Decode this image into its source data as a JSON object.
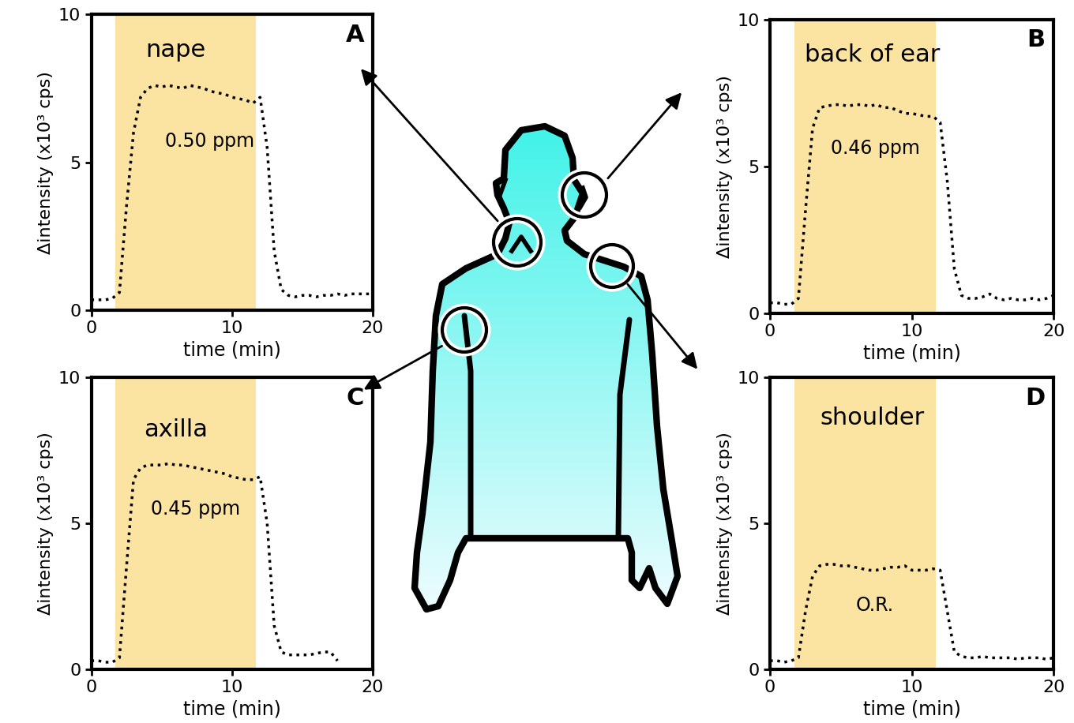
{
  "chart_data": [
    {
      "type": "line",
      "title": "nape",
      "panel": "A",
      "annotation": "0.50 ppm",
      "x_label": "time (min)",
      "y_label": "Δintensity (x10³ cps)",
      "xlim": [
        0,
        20
      ],
      "xticks": [
        0,
        10,
        20
      ],
      "ylim": [
        0,
        10
      ],
      "yticks": [
        0,
        5,
        10
      ],
      "exposure": [
        1.7,
        11.7
      ],
      "color": "#000000",
      "line_style": "dotted",
      "x": [
        0,
        0.5,
        1,
        1.5,
        2,
        2.5,
        3,
        3.5,
        4,
        4.5,
        5,
        5.5,
        6,
        6.5,
        7,
        7.5,
        8,
        8.5,
        9,
        9.5,
        10,
        10.5,
        11,
        11.5,
        12,
        12.5,
        13,
        13.5,
        14,
        14.5,
        15,
        15.5,
        16,
        16.5,
        17,
        17.5,
        18,
        18.5,
        19,
        19.5,
        20
      ],
      "values": [
        0.35,
        0.35,
        0.35,
        0.4,
        0.6,
        3.5,
        6.0,
        7.2,
        7.5,
        7.6,
        7.55,
        7.6,
        7.55,
        7.5,
        7.6,
        7.55,
        7.5,
        7.4,
        7.35,
        7.3,
        7.2,
        7.15,
        7.1,
        7.0,
        7.2,
        5.5,
        2.0,
        0.7,
        0.5,
        0.45,
        0.5,
        0.5,
        0.45,
        0.5,
        0.5,
        0.55,
        0.5,
        0.55,
        0.55,
        0.55,
        0.55
      ]
    },
    {
      "type": "line",
      "title": "back of ear",
      "panel": "B",
      "annotation": "0.46 ppm",
      "x_label": "time (min)",
      "y_label": "Δintensity (x10³ cps)",
      "xlim": [
        0,
        20
      ],
      "xticks": [
        0,
        10,
        20
      ],
      "ylim": [
        0,
        10
      ],
      "yticks": [
        0,
        5,
        10
      ],
      "exposure": [
        1.7,
        11.7
      ],
      "color": "#000000",
      "line_style": "dotted",
      "x": [
        0,
        0.5,
        1,
        1.5,
        2,
        2.5,
        3,
        3.5,
        4,
        4.5,
        5,
        5.5,
        6,
        6.5,
        7,
        7.5,
        8,
        8.5,
        9,
        9.5,
        10,
        10.5,
        11,
        11.5,
        12,
        12.5,
        13,
        13.5,
        14,
        14.5,
        15,
        15.5,
        16,
        16.5,
        17,
        17.5,
        18,
        18.5,
        19,
        19.5,
        20
      ],
      "values": [
        0.35,
        0.35,
        0.3,
        0.3,
        0.5,
        3.5,
        6.3,
        7.0,
        7.05,
        7.1,
        7.1,
        7.05,
        7.1,
        7.1,
        7.05,
        7.1,
        7.0,
        7.0,
        6.9,
        6.8,
        6.8,
        6.75,
        6.7,
        6.7,
        6.5,
        4.5,
        1.5,
        0.6,
        0.5,
        0.5,
        0.55,
        0.65,
        0.5,
        0.45,
        0.5,
        0.45,
        0.45,
        0.5,
        0.45,
        0.5,
        0.6
      ]
    },
    {
      "type": "line",
      "title": "axilla",
      "panel": "C",
      "annotation": "0.45 ppm",
      "x_label": "time (min)",
      "y_label": "Δintensity (x10³ cps)",
      "xlim": [
        0,
        20
      ],
      "xticks": [
        0,
        10,
        20
      ],
      "ylim": [
        0,
        10
      ],
      "yticks": [
        0,
        5,
        10
      ],
      "exposure": [
        1.7,
        11.7
      ],
      "color": "#000000",
      "line_style": "dotted",
      "x": [
        0,
        0.5,
        1,
        1.5,
        2,
        2.5,
        3,
        3.5,
        4,
        4.5,
        5,
        5.5,
        6,
        6.5,
        7,
        7.5,
        8,
        8.5,
        9,
        9.5,
        10,
        10.5,
        11,
        11.5,
        12,
        12.5,
        13,
        13.5,
        14,
        14.5,
        15,
        15.5,
        16,
        16.5,
        17,
        17.5,
        18,
        18.5,
        19,
        19.5,
        20
      ],
      "values": [
        0.3,
        0.3,
        0.25,
        0.25,
        0.4,
        3.5,
        6.5,
        6.9,
        7.0,
        7.0,
        7.0,
        7.05,
        7.0,
        7.0,
        6.95,
        6.9,
        6.85,
        6.8,
        6.75,
        6.7,
        6.6,
        6.55,
        6.5,
        6.5,
        6.6,
        5.0,
        1.5,
        0.6,
        0.5,
        0.5,
        0.5,
        0.5,
        0.55,
        0.6,
        0.6,
        0.3,
        null,
        null,
        null,
        null,
        null
      ]
    },
    {
      "type": "line",
      "title": "shoulder",
      "panel": "D",
      "annotation": "O.R.",
      "x_label": "time (min)",
      "y_label": "Δintensity (x10³ cps)",
      "xlim": [
        0,
        20
      ],
      "xticks": [
        0,
        10,
        20
      ],
      "ylim": [
        0,
        10
      ],
      "yticks": [
        0,
        5,
        10
      ],
      "exposure": [
        1.7,
        11.7
      ],
      "color": "#000000",
      "line_style": "dotted",
      "x": [
        0,
        0.5,
        1,
        1.5,
        2,
        2.5,
        3,
        3.5,
        4,
        4.5,
        5,
        5.5,
        6,
        6.5,
        7,
        7.5,
        8,
        8.5,
        9,
        9.5,
        10,
        10.5,
        11,
        11.5,
        12,
        12.5,
        13,
        13.5,
        14,
        14.5,
        15,
        15.5,
        16,
        16.5,
        17,
        17.5,
        18,
        18.5,
        19,
        19.5,
        20
      ],
      "values": [
        0.3,
        0.3,
        0.25,
        0.3,
        0.4,
        2.0,
        3.2,
        3.55,
        3.6,
        3.6,
        3.55,
        3.55,
        3.5,
        3.45,
        3.4,
        3.4,
        3.45,
        3.5,
        3.5,
        3.55,
        3.4,
        3.4,
        3.4,
        3.45,
        3.4,
        2.0,
        0.6,
        0.45,
        0.4,
        0.4,
        0.45,
        0.4,
        0.4,
        0.4,
        0.4,
        0.35,
        0.4,
        0.4,
        0.4,
        0.35,
        0.4
      ]
    }
  ]
}
